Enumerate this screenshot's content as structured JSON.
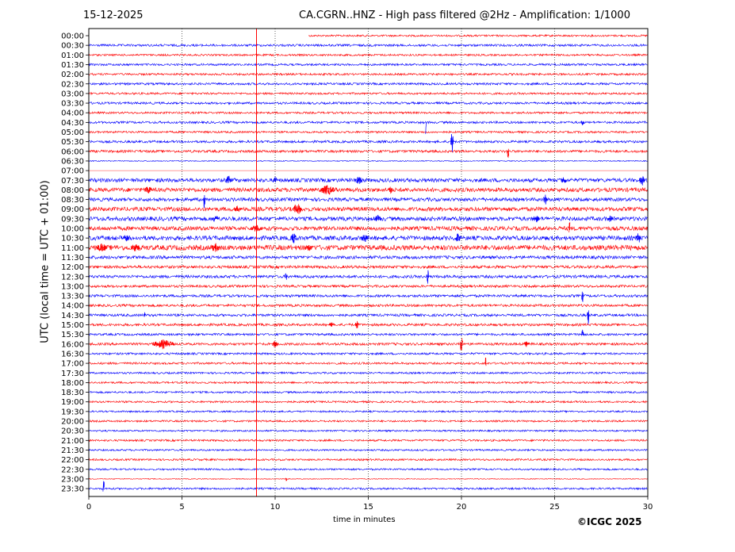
{
  "header": {
    "date": "15-12-2025",
    "title": "CA.CGRN..HNZ - High pass filtered @2Hz - Amplification: 1/1000"
  },
  "footer": {
    "copyright": "©ICGC 2025"
  },
  "colors": {
    "red": "#ff0000",
    "blue": "#0000ff",
    "frame": "#000000",
    "grid": "#000000"
  },
  "chart_data": {
    "type": "line",
    "title": "CA.CGRN..HNZ - High pass filtered @2Hz - Amplification: 1/1000",
    "xlabel": "time in minutes",
    "ylabel": "UTC (local time = UTC + 01:00)",
    "xlim": [
      0,
      30
    ],
    "xticks": [
      0,
      5,
      10,
      15,
      20,
      25,
      30
    ],
    "vertical_gridlines": [
      5,
      10,
      15,
      20,
      25
    ],
    "grid": "dotted vertical lines",
    "rows": [
      "00:00",
      "00:30",
      "01:00",
      "01:30",
      "02:00",
      "02:30",
      "03:00",
      "03:30",
      "04:00",
      "04:30",
      "05:00",
      "05:30",
      "06:00",
      "06:30",
      "07:00",
      "07:30",
      "08:00",
      "08:30",
      "09:00",
      "09:30",
      "10:00",
      "10:30",
      "11:00",
      "11:30",
      "12:00",
      "12:30",
      "13:00",
      "13:30",
      "14:00",
      "14:30",
      "15:00",
      "15:30",
      "16:00",
      "16:30",
      "17:00",
      "17:30",
      "18:00",
      "18:30",
      "19:00",
      "19:30",
      "20:00",
      "20:30",
      "21:00",
      "21:30",
      "22:00",
      "22:30",
      "23:00",
      "23:30"
    ],
    "row_colors": [
      "red",
      "blue"
    ],
    "row_noise": [
      1.2,
      1.4,
      1.2,
      1.3,
      1.3,
      1.4,
      1.3,
      1.4,
      1.3,
      1.4,
      1.3,
      1.5,
      1.6,
      0.6,
      0.3,
      2.4,
      2.6,
      2.2,
      2.6,
      2.6,
      2.6,
      2.8,
      3.2,
      2.0,
      1.8,
      1.8,
      1.6,
      1.6,
      1.6,
      1.6,
      1.6,
      1.4,
      1.6,
      1.3,
      1.3,
      1.2,
      1.2,
      1.2,
      1.2,
      1.1,
      1.2,
      1.1,
      1.2,
      1.1,
      1.2,
      1.1,
      0.5,
      1.2
    ],
    "partial_traces": [
      {
        "row": "00:00",
        "start": 11.8,
        "end": 30
      },
      {
        "row": "07:00",
        "start": 0,
        "end": 0
      }
    ],
    "events": [
      {
        "row": "00:00",
        "x": 9.0,
        "amp": 600,
        "width": 0.02
      },
      {
        "row": "04:30",
        "x": 18.1,
        "amp": 30,
        "width": 0.05
      },
      {
        "row": "04:30",
        "x": 26.5,
        "amp": 5,
        "width": 0.15
      },
      {
        "row": "05:30",
        "x": 19.5,
        "amp": 22,
        "width": 0.15
      },
      {
        "row": "06:00",
        "x": 22.5,
        "amp": 25,
        "width": 0.1
      },
      {
        "row": "07:30",
        "x": 7.5,
        "amp": 6,
        "width": 0.3
      },
      {
        "row": "07:30",
        "x": 10.0,
        "amp": 5,
        "width": 0.2
      },
      {
        "row": "07:30",
        "x": 14.5,
        "amp": 6,
        "width": 0.4
      },
      {
        "row": "07:30",
        "x": 25.5,
        "amp": 5,
        "width": 0.3
      },
      {
        "row": "07:30",
        "x": 29.7,
        "amp": 8,
        "width": 0.3
      },
      {
        "row": "08:00",
        "x": 3.2,
        "amp": 5,
        "width": 0.4
      },
      {
        "row": "08:00",
        "x": 12.8,
        "amp": 7,
        "width": 0.8
      },
      {
        "row": "08:00",
        "x": 16.2,
        "amp": 5,
        "width": 0.2
      },
      {
        "row": "08:30",
        "x": 6.2,
        "amp": 14,
        "width": 0.1
      },
      {
        "row": "08:30",
        "x": 24.5,
        "amp": 8,
        "width": 0.2
      },
      {
        "row": "09:00",
        "x": 11.2,
        "amp": 8,
        "width": 0.5
      },
      {
        "row": "09:00",
        "x": 8.0,
        "amp": 5,
        "width": 0.4
      },
      {
        "row": "09:30",
        "x": 6.8,
        "amp": 6,
        "width": 0.3
      },
      {
        "row": "09:30",
        "x": 15.5,
        "amp": 5,
        "width": 0.4
      },
      {
        "row": "09:30",
        "x": 24.0,
        "amp": 5,
        "width": 0.4
      },
      {
        "row": "09:30",
        "x": 28.0,
        "amp": 5,
        "width": 0.3
      },
      {
        "row": "10:00",
        "x": 9.0,
        "amp": 5,
        "width": 0.6
      },
      {
        "row": "10:00",
        "x": 25.8,
        "amp": 12,
        "width": 0.05
      },
      {
        "row": "10:30",
        "x": 2.0,
        "amp": 5,
        "width": 0.3
      },
      {
        "row": "10:30",
        "x": 11.0,
        "amp": 7,
        "width": 0.3
      },
      {
        "row": "10:30",
        "x": 14.8,
        "amp": 6,
        "width": 0.4
      },
      {
        "row": "10:30",
        "x": 19.8,
        "amp": 7,
        "width": 0.3
      },
      {
        "row": "10:30",
        "x": 29.5,
        "amp": 7,
        "width": 0.3
      },
      {
        "row": "11:00",
        "x": 0.7,
        "amp": 6,
        "width": 0.6
      },
      {
        "row": "11:00",
        "x": 2.5,
        "amp": 6,
        "width": 0.5
      },
      {
        "row": "11:00",
        "x": 6.8,
        "amp": 6,
        "width": 0.5
      },
      {
        "row": "11:00",
        "x": 11.8,
        "amp": 5,
        "width": 0.4
      },
      {
        "row": "12:30",
        "x": 10.6,
        "amp": 10,
        "width": 0.1
      },
      {
        "row": "12:30",
        "x": 18.2,
        "amp": 12,
        "width": 0.1
      },
      {
        "row": "13:30",
        "x": 26.5,
        "amp": 12,
        "width": 0.1
      },
      {
        "row": "14:30",
        "x": 26.8,
        "amp": 14,
        "width": 0.1
      },
      {
        "row": "14:30",
        "x": 3.0,
        "amp": 8,
        "width": 0.05
      },
      {
        "row": "15:00",
        "x": 13.0,
        "amp": 5,
        "width": 0.2
      },
      {
        "row": "15:00",
        "x": 14.4,
        "amp": 5,
        "width": 0.2
      },
      {
        "row": "15:30",
        "x": 26.5,
        "amp": 6,
        "width": 0.15
      },
      {
        "row": "16:00",
        "x": 4.0,
        "amp": 6,
        "width": 1.2
      },
      {
        "row": "16:00",
        "x": 10.0,
        "amp": 5,
        "width": 0.3
      },
      {
        "row": "16:00",
        "x": 20.0,
        "amp": 12,
        "width": 0.15
      },
      {
        "row": "16:00",
        "x": 23.5,
        "amp": 4,
        "width": 0.3
      },
      {
        "row": "17:00",
        "x": 21.3,
        "amp": 10,
        "width": 0.05
      },
      {
        "row": "23:30",
        "x": 0.8,
        "amp": 45,
        "width": 0.08
      },
      {
        "row": "23:00",
        "x": 10.6,
        "amp": 3,
        "width": 0.1
      }
    ]
  }
}
